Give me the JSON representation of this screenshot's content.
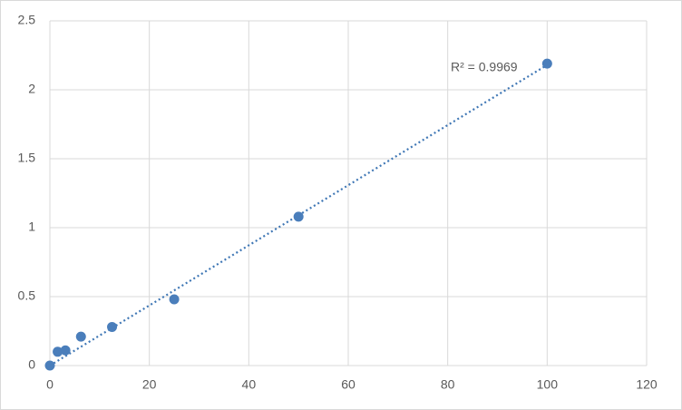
{
  "chart_data": {
    "type": "scatter",
    "series": [
      {
        "color": "#4a7ebb",
        "x": [
          0,
          1.5625,
          3.125,
          6.25,
          12.5,
          25,
          50,
          100
        ],
        "values": [
          0,
          0.1,
          0.11,
          0.21,
          0.28,
          0.48,
          1.08,
          2.19
        ]
      }
    ],
    "trendline": {
      "x": [
        0,
        100
      ],
      "values": [
        0.0,
        2.18
      ],
      "color": "#3f77b5",
      "style": "dotted"
    },
    "annotation": "R² = 0.9969",
    "xlim": [
      0,
      120
    ],
    "xticks": [
      0,
      20,
      40,
      60,
      80,
      100,
      120
    ],
    "ylim": [
      0,
      2.5
    ],
    "yticks": [
      0,
      0.5,
      1,
      1.5,
      2,
      2.5
    ],
    "grid": true
  }
}
